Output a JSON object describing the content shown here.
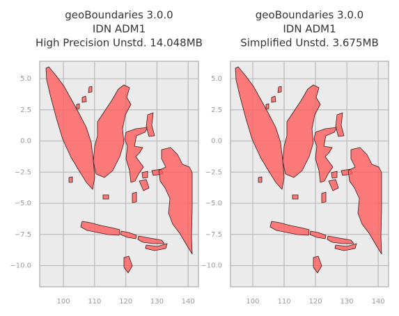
{
  "chart_data": [
    {
      "type": "map",
      "title": [
        "geoBoundaries 3.0.0",
        "IDN ADM1",
        "High Precision Unstd. 14.048MB"
      ],
      "xlim": [
        92.4,
        143.3
      ],
      "ylim": [
        -11.7,
        6.4
      ],
      "xticks": [
        100,
        110,
        120,
        130,
        140
      ],
      "yticks": [
        {
          "value": 5,
          "label": "5.0"
        },
        {
          "value": 2.5,
          "label": "2.5"
        },
        {
          "value": 0,
          "label": "0.0"
        },
        {
          "value": -2.5,
          "label": "−2.5"
        },
        {
          "value": -5,
          "label": "−5.0"
        },
        {
          "value": -7.5,
          "label": "−7.5"
        },
        {
          "value": -10,
          "label": "−10.0"
        }
      ],
      "grid": true,
      "color": "#ff5c5c"
    },
    {
      "type": "map",
      "title": [
        "geoBoundaries 3.0.0",
        "IDN ADM1",
        "Simplified Unstd. 3.675MB"
      ],
      "xlim": [
        92.9,
        143.3
      ],
      "ylim": [
        -11.7,
        6.4
      ],
      "xticks": [
        100,
        110,
        120,
        130,
        140
      ],
      "yticks": [
        {
          "value": 5,
          "label": "5.0"
        },
        {
          "value": 2.5,
          "label": "2.5"
        },
        {
          "value": 0,
          "label": "0.0"
        },
        {
          "value": -2.5,
          "label": "−2.5"
        },
        {
          "value": -5,
          "label": "−5.0"
        },
        {
          "value": -7.5,
          "label": "−7.5"
        },
        {
          "value": -10,
          "label": "−10.0"
        }
      ],
      "grid": true,
      "color": "#ff5c5c"
    }
  ]
}
